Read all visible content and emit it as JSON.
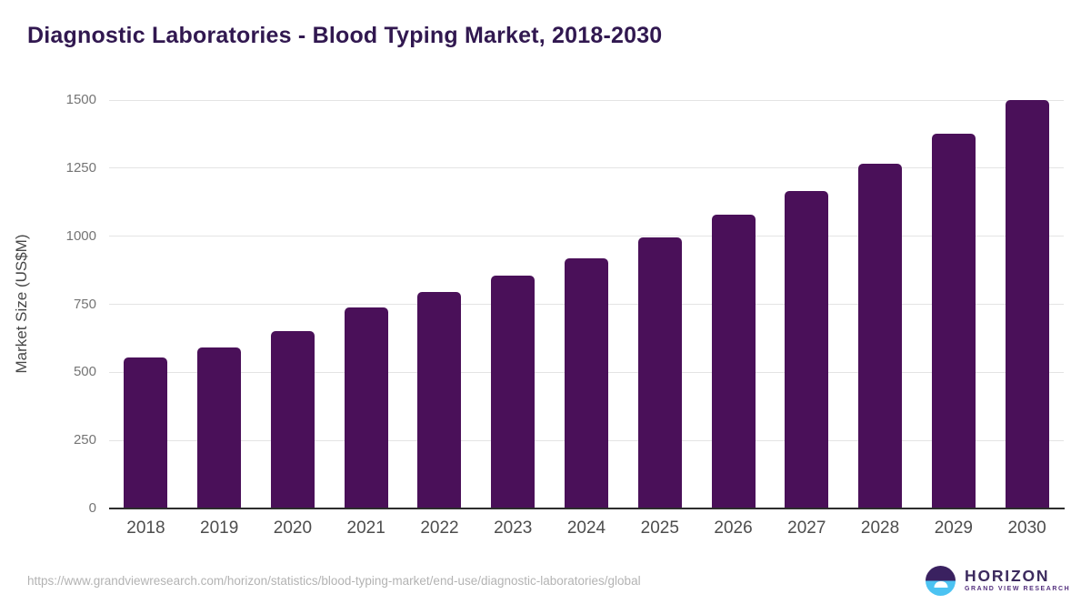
{
  "header": {
    "title": "Diagnostic Laboratories - Blood Typing Market, 2018-2030"
  },
  "chart_data": {
    "type": "bar",
    "title": "Diagnostic Laboratories - Blood Typing Market, 2018-2030",
    "categories": [
      "2018",
      "2019",
      "2020",
      "2021",
      "2022",
      "2023",
      "2024",
      "2025",
      "2026",
      "2027",
      "2028",
      "2029",
      "2030"
    ],
    "values": [
      555,
      590,
      650,
      740,
      795,
      855,
      920,
      995,
      1080,
      1165,
      1265,
      1375,
      1500
    ],
    "xlabel": "",
    "ylabel": "Market Size (US$M)",
    "ylim": [
      0,
      1500
    ],
    "yticks": [
      0,
      250,
      500,
      750,
      1000,
      1250,
      1500
    ],
    "grid": true,
    "legend": "none",
    "bar_color": "#4a1059"
  },
  "footer": {
    "source_url": "https://www.grandviewresearch.com/horizon/statistics/blood-typing-market/end-use/diagnostic-laboratories/global",
    "logo": {
      "name": "HORIZON",
      "subtitle": "GRAND VIEW RESEARCH"
    }
  },
  "colors": {
    "bar": "#4a1059",
    "title_text": "#311850",
    "gridline": "#e4e4e4",
    "axis_line": "#2d2d2d",
    "ytick_text": "#757575",
    "xtick_text": "#4d4d4d",
    "url_text": "#b3b3b3",
    "logo_purple": "#3a2160",
    "logo_blue": "#4cc3f2",
    "logo_text": "#3c2a5e"
  }
}
